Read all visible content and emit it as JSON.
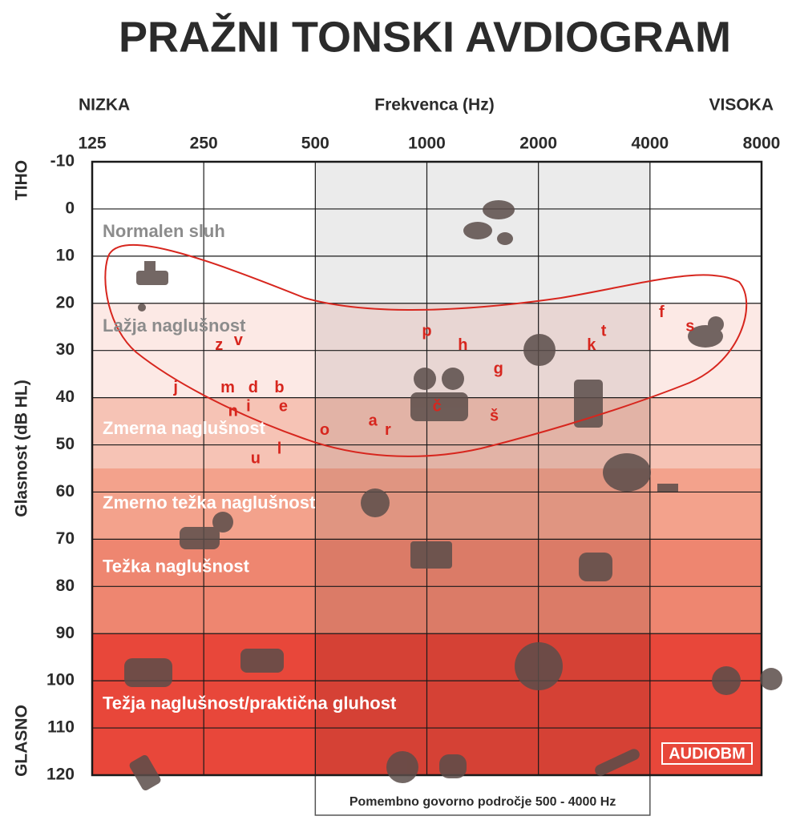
{
  "chart_data": {
    "type": "audiogram",
    "title": "PRAŽNI TONSKI AVDIOGRAM",
    "x_label": "Frekvenca (Hz)",
    "x_low_label": "NIZKA",
    "x_high_label": "VISOKA",
    "y_label": "Glasnost (dB HL)",
    "y_top_label": "TIHO",
    "y_bottom_label": "GLASNO",
    "x_log": true,
    "xlim": [
      125,
      8000
    ],
    "xticks": [
      125,
      250,
      500,
      1000,
      2000,
      4000,
      8000
    ],
    "ylim": [
      -10,
      120
    ],
    "y_inverted": true,
    "yticks": [
      -10,
      0,
      10,
      20,
      30,
      40,
      50,
      60,
      70,
      80,
      90,
      100,
      110,
      120
    ],
    "grid": true,
    "bands": [
      {
        "name": "Normalen sluh",
        "from": -10,
        "to": 20,
        "color": "#ffffff",
        "label_color": "#8c8c8c"
      },
      {
        "name": "Lažja naglušnost",
        "from": 20,
        "to": 40,
        "color": "#fce9e5",
        "label_color": "#8c8c8c"
      },
      {
        "name": "Zmerna naglušnost",
        "from": 40,
        "to": 55,
        "color": "#f6c3b5",
        "label_color": "#ffffff"
      },
      {
        "name": "Zmerno težka naglušnost",
        "from": 55,
        "to": 70,
        "color": "#f3a28c",
        "label_color": "#ffffff"
      },
      {
        "name": "Težka naglušnost",
        "from": 70,
        "to": 90,
        "color": "#ee8670",
        "label_color": "#ffffff"
      },
      {
        "name": "Težja naglušnost/praktična gluhost",
        "from": 90,
        "to": 120,
        "color": "#e8473a",
        "label_color": "#ffffff"
      }
    ],
    "speech_region": {
      "label": "Pomembno govorno področje 500 - 4000 Hz",
      "from": 500,
      "to": 4000,
      "color": "#000000"
    },
    "phonemes": [
      {
        "letter": "j",
        "x": 210,
        "y": 38
      },
      {
        "letter": "z",
        "x": 275,
        "y": 29
      },
      {
        "letter": "v",
        "x": 310,
        "y": 28
      },
      {
        "letter": "m",
        "x": 290,
        "y": 38
      },
      {
        "letter": "d",
        "x": 340,
        "y": 38
      },
      {
        "letter": "b",
        "x": 400,
        "y": 38
      },
      {
        "letter": "n",
        "x": 300,
        "y": 43
      },
      {
        "letter": "i",
        "x": 330,
        "y": 42
      },
      {
        "letter": "e",
        "x": 410,
        "y": 42
      },
      {
        "letter": "u",
        "x": 345,
        "y": 53
      },
      {
        "letter": "l",
        "x": 400,
        "y": 51
      },
      {
        "letter": "o",
        "x": 530,
        "y": 47
      },
      {
        "letter": "a",
        "x": 715,
        "y": 45
      },
      {
        "letter": "r",
        "x": 785,
        "y": 47
      },
      {
        "letter": "p",
        "x": 1000,
        "y": 26
      },
      {
        "letter": "h",
        "x": 1250,
        "y": 29
      },
      {
        "letter": "č",
        "x": 1065,
        "y": 42
      },
      {
        "letter": "g",
        "x": 1560,
        "y": 34
      },
      {
        "letter": "š",
        "x": 1520,
        "y": 44
      },
      {
        "letter": "k",
        "x": 2780,
        "y": 29
      },
      {
        "letter": "t",
        "x": 3000,
        "y": 26
      },
      {
        "letter": "f",
        "x": 4300,
        "y": 22
      },
      {
        "letter": "s",
        "x": 5130,
        "y": 25
      }
    ],
    "phoneme_color": "#d7261e",
    "logo": "AUDIOBM"
  }
}
